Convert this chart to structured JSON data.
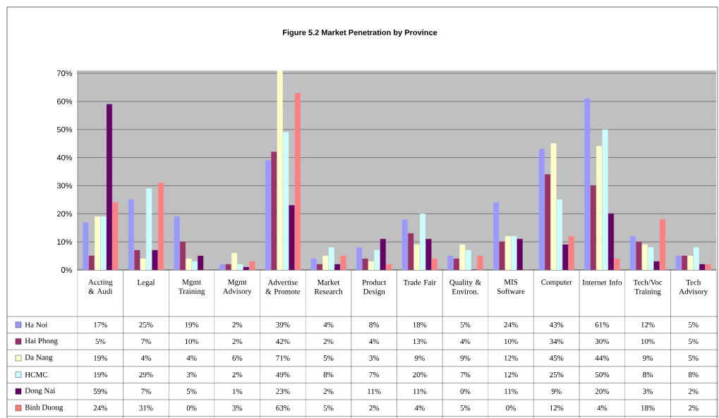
{
  "chart_data": {
    "type": "bar",
    "title": "Figure 5.2 Market Penetration by Province",
    "categories": [
      "Accting & Audi",
      "Legal",
      "Mgmt Training",
      "Mgmt Advisory",
      "Advertise & Promote",
      "Market Research",
      "Product Design",
      "Trade Fair",
      "Quality & Environ.",
      "MIS Software",
      "Computer",
      "Internet Info",
      "Tech/Voc Training",
      "Tech Advisory"
    ],
    "series": [
      {
        "name": "Ha Noi",
        "color": "#9999ff",
        "values": [
          17,
          25,
          19,
          2,
          39,
          4,
          8,
          18,
          5,
          24,
          43,
          61,
          12,
          5
        ],
        "value_labels": [
          "17%",
          "25%",
          "19%",
          "2%",
          "39%",
          "4%",
          "8%",
          "18%",
          "5%",
          "24%",
          "43%",
          "61%",
          "12%",
          "5%"
        ]
      },
      {
        "name": "Hai Phong",
        "color": "#993366",
        "values": [
          5,
          7,
          10,
          2,
          42,
          2,
          4,
          13,
          4,
          10,
          34,
          30,
          10,
          5
        ],
        "value_labels": [
          "5%",
          "7%",
          "10%",
          "2%",
          "42%",
          "2%",
          "4%",
          "13%",
          "4%",
          "10%",
          "34%",
          "30%",
          "10%",
          "5%"
        ]
      },
      {
        "name": "Da Nang",
        "color": "#ffffcc",
        "values": [
          19,
          4,
          4,
          6,
          71,
          5,
          3,
          9,
          9,
          12,
          45,
          44,
          9,
          5
        ],
        "value_labels": [
          "19%",
          "4%",
          "4%",
          "6%",
          "71%",
          "5%",
          "3%",
          "9%",
          "9%",
          "12%",
          "45%",
          "44%",
          "9%",
          "5%"
        ]
      },
      {
        "name": "HCMC",
        "color": "#ccffff",
        "values": [
          19,
          29,
          3,
          2,
          49,
          8,
          7,
          20,
          7,
          12,
          25,
          50,
          8,
          8
        ],
        "value_labels": [
          "19%",
          "29%",
          "3%",
          "2%",
          "49%",
          "8%",
          "7%",
          "20%",
          "7%",
          "12%",
          "25%",
          "50%",
          "8%",
          "8%"
        ]
      },
      {
        "name": "Dong Nai",
        "color": "#660066",
        "values": [
          59,
          7,
          5,
          1,
          23,
          2,
          11,
          11,
          0,
          11,
          9,
          20,
          3,
          2
        ],
        "value_labels": [
          "59%",
          "7%",
          "5%",
          "1%",
          "23%",
          "2%",
          "11%",
          "11%",
          "0%",
          "11%",
          "9%",
          "20%",
          "3%",
          "2%"
        ]
      },
      {
        "name": "Binh Duong",
        "color": "#ff8080",
        "values": [
          24,
          31,
          0,
          3,
          63,
          5,
          2,
          4,
          5,
          0,
          12,
          4,
          18,
          2
        ],
        "value_labels": [
          "24%",
          "31%",
          "0%",
          "3%",
          "63%",
          "5%",
          "2%",
          "4%",
          "5%",
          "0%",
          "12%",
          "4%",
          "18%",
          "2%"
        ]
      }
    ],
    "ylim": [
      0,
      71
    ],
    "yticks": [
      {
        "value": 0,
        "label": "0%"
      },
      {
        "value": 10,
        "label": "10%"
      },
      {
        "value": 20,
        "label": "20%"
      },
      {
        "value": 30,
        "label": "30%"
      },
      {
        "value": 40,
        "label": "40%"
      },
      {
        "value": 50,
        "label": "50%"
      },
      {
        "value": 60,
        "label": "60%"
      },
      {
        "value": 70,
        "label": "70%"
      }
    ],
    "grid": "y",
    "legend": "bottom"
  }
}
